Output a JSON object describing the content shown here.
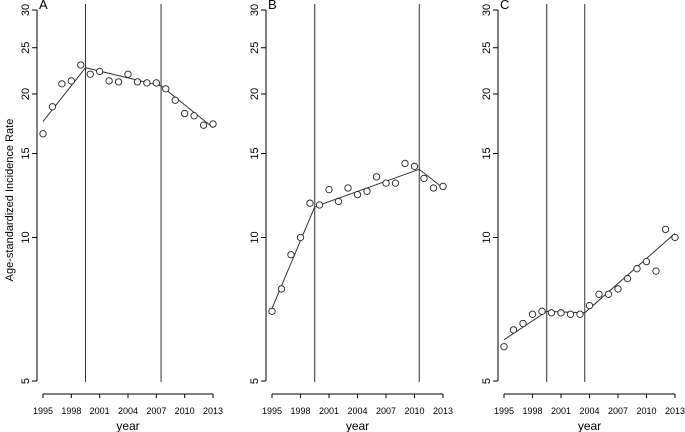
{
  "figure": {
    "ylabel": "Age-standardized Incidence Rate"
  },
  "chart_data": [
    {
      "type": "scatter",
      "panel_label": "A",
      "xlabel": "year",
      "xlim": [
        1995,
        2013
      ],
      "xticks": [
        1995,
        1998,
        2001,
        2004,
        2007,
        2010,
        2013
      ],
      "y_scale": "log",
      "ylim": [
        5,
        30
      ],
      "yticks": [
        5,
        10,
        15,
        20,
        25,
        30
      ],
      "grid": false,
      "joinpoints": [
        1999.5,
        2007.5
      ],
      "points": {
        "x": [
          1995,
          1996,
          1997,
          1998,
          1999,
          2000,
          2001,
          2002,
          2003,
          2004,
          2005,
          2006,
          2007,
          2008,
          2009,
          2010,
          2011,
          2012,
          2013
        ],
        "y": [
          16.5,
          18.8,
          21.0,
          21.3,
          23.0,
          22.0,
          22.3,
          21.3,
          21.2,
          22.0,
          21.2,
          21.1,
          21.1,
          20.5,
          19.4,
          18.2,
          18.0,
          17.2,
          17.3
        ]
      },
      "trend": {
        "x": [
          1995,
          1999.5,
          2007.5,
          2013
        ],
        "y": [
          17.5,
          22.7,
          20.8,
          17.0
        ]
      }
    },
    {
      "type": "scatter",
      "panel_label": "B",
      "xlabel": "year",
      "xlim": [
        1995,
        2013
      ],
      "xticks": [
        1995,
        1998,
        2001,
        2004,
        2007,
        2010,
        2013
      ],
      "y_scale": "log",
      "ylim": [
        5,
        30
      ],
      "yticks": [
        5,
        10,
        15,
        20,
        25,
        30
      ],
      "grid": false,
      "joinpoints": [
        1999.5,
        2010.5
      ],
      "points": {
        "x": [
          1995,
          1996,
          1997,
          1998,
          1999,
          2000,
          2001,
          2002,
          2003,
          2004,
          2005,
          2006,
          2007,
          2008,
          2009,
          2010,
          2011,
          2012,
          2013
        ],
        "y": [
          7.0,
          7.8,
          9.2,
          10.0,
          11.8,
          11.7,
          12.6,
          11.9,
          12.7,
          12.3,
          12.5,
          13.4,
          13.0,
          13.0,
          14.3,
          14.1,
          13.3,
          12.7,
          12.8
        ]
      },
      "trend": {
        "x": [
          1995,
          1999.5,
          2010.5,
          2013
        ],
        "y": [
          7.1,
          11.6,
          13.9,
          12.7
        ]
      }
    },
    {
      "type": "scatter",
      "panel_label": "C",
      "xlabel": "year",
      "xlim": [
        1995,
        2013
      ],
      "xticks": [
        1995,
        1998,
        2001,
        2004,
        2007,
        2010,
        2013
      ],
      "y_scale": "log",
      "ylim": [
        5,
        30
      ],
      "yticks": [
        5,
        10,
        15,
        20,
        25,
        30
      ],
      "grid": false,
      "joinpoints": [
        1999.5,
        2003.5
      ],
      "points": {
        "x": [
          1995,
          1996,
          1997,
          1998,
          1999,
          2000,
          2001,
          2002,
          2003,
          2004,
          2005,
          2006,
          2007,
          2008,
          2009,
          2010,
          2011,
          2012,
          2013
        ],
        "y": [
          5.9,
          6.4,
          6.6,
          6.9,
          7.0,
          6.95,
          6.95,
          6.9,
          6.9,
          7.2,
          7.6,
          7.6,
          7.8,
          8.2,
          8.6,
          8.9,
          8.5,
          10.4,
          10.0
        ]
      },
      "trend": {
        "x": [
          1995,
          1999.5,
          2003.5,
          2013
        ],
        "y": [
          6.1,
          7.0,
          6.95,
          10.2
        ]
      }
    }
  ]
}
